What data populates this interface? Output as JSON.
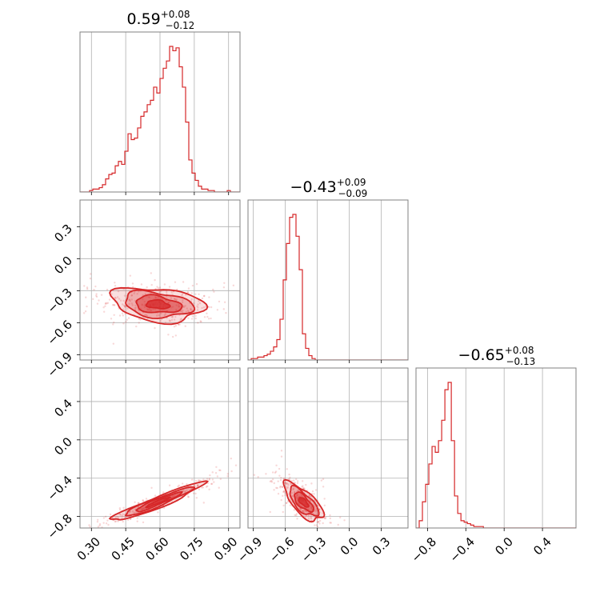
{
  "chart_data": {
    "type": "corner",
    "color": "#d62728",
    "grid": true,
    "titles": [
      {
        "value": "0.59",
        "plus": "+0.08",
        "minus": "−0.12"
      },
      {
        "value": "−0.43",
        "plus": "+0.09",
        "minus": "−0.09"
      },
      {
        "value": "−0.65",
        "plus": "+0.08",
        "minus": "−0.13"
      }
    ],
    "params": [
      {
        "range": [
          0.25,
          0.95
        ],
        "ticks": [
          0.3,
          0.45,
          0.6,
          0.75,
          0.9
        ],
        "tick_labels": [
          "0.30",
          "0.45",
          "0.60",
          "0.75",
          "0.90"
        ]
      },
      {
        "range": [
          -0.95,
          0.55
        ],
        "ticks": [
          -0.9,
          -0.6,
          -0.3,
          0.0,
          0.3
        ],
        "tick_labels": [
          "−0.9",
          "−0.6",
          "−0.3",
          "0.0",
          "0.3"
        ]
      },
      {
        "range": [
          -0.92,
          0.75
        ],
        "ticks": [
          -0.8,
          -0.4,
          0.0,
          0.4
        ],
        "tick_labels": [
          "−0.8",
          "−0.4",
          "0.0",
          "0.4"
        ]
      }
    ],
    "histograms": [
      {
        "bin_start": 0.25,
        "bin_width": 0.014,
        "counts": [
          0,
          0,
          0,
          1,
          2,
          2,
          3,
          5,
          9,
          12,
          13,
          18,
          21,
          19,
          28,
          40,
          36,
          37,
          44,
          52,
          55,
          60,
          63,
          72,
          68,
          78,
          85,
          90,
          100,
          97,
          99,
          86,
          72,
          48,
          22,
          13,
          8,
          4,
          2,
          2,
          1,
          1,
          0,
          0,
          0,
          0,
          1,
          0,
          0,
          0
        ]
      },
      {
        "bin_start": -0.95,
        "bin_width": 0.03,
        "counts": [
          0,
          1,
          1,
          2,
          2,
          3,
          4,
          6,
          9,
          14,
          28,
          55,
          80,
          98,
          100,
          85,
          62,
          18,
          8,
          3,
          1,
          0,
          0,
          0,
          0,
          0,
          0,
          0,
          0,
          0,
          0,
          0,
          0,
          0,
          0,
          0,
          0,
          0,
          0,
          0,
          0,
          0,
          0,
          0,
          0,
          0,
          0,
          0,
          0,
          0
        ]
      },
      {
        "bin_start": -0.92,
        "bin_width": 0.0335,
        "counts": [
          0,
          5,
          18,
          30,
          44,
          56,
          52,
          60,
          74,
          95,
          100,
          60,
          22,
          10,
          5,
          4,
          3,
          2,
          1,
          1,
          1,
          0,
          0,
          0,
          0,
          0,
          0,
          0,
          0,
          0,
          0,
          0,
          0,
          0,
          0,
          0,
          0,
          0,
          0,
          0,
          0,
          0,
          0,
          0,
          0,
          0,
          0,
          0,
          0,
          0
        ]
      }
    ],
    "pairs": [
      {
        "x": 0,
        "y": 1,
        "mean": [
          0.59,
          -0.43
        ],
        "sd": [
          0.1,
          0.08
        ],
        "rho": -0.25,
        "spread": [
          0.2,
          0.1
        ]
      },
      {
        "x": 0,
        "y": 2,
        "mean": [
          0.59,
          -0.65
        ],
        "sd": [
          0.1,
          0.1
        ],
        "rho": 0.95,
        "spread": [
          0.25,
          0.15
        ]
      },
      {
        "x": 1,
        "y": 2,
        "mean": [
          -0.43,
          -0.65
        ],
        "sd": [
          0.09,
          0.1
        ],
        "rho": -0.7,
        "spread": [
          0.15,
          0.15
        ]
      }
    ]
  }
}
